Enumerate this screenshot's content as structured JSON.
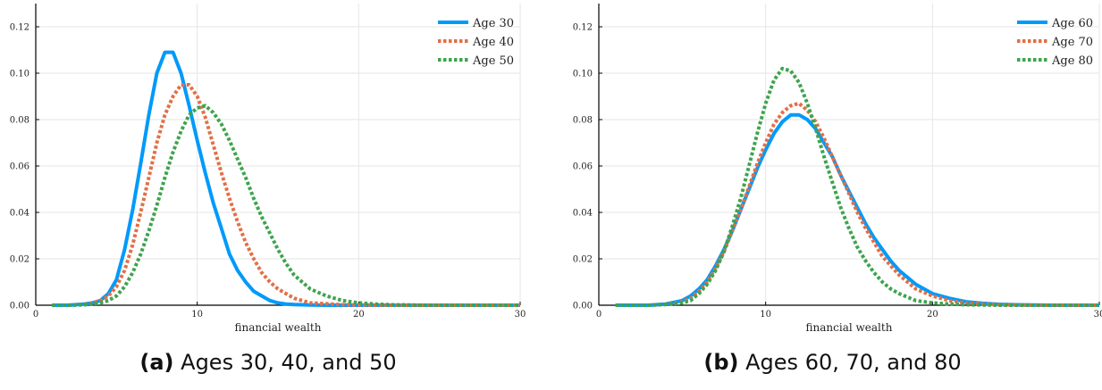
{
  "chart_data": [
    {
      "type": "line",
      "panel_label": "(a)",
      "caption": "Ages 30, 40, and 50",
      "xlabel": "financial wealth",
      "ylabel": "",
      "xlim": [
        0,
        30
      ],
      "ylim": [
        0,
        0.13
      ],
      "xticks": [
        0,
        10,
        20,
        30
      ],
      "yticks": [
        0.0,
        0.02,
        0.04,
        0.06,
        0.08,
        0.1,
        0.12
      ],
      "ytick_labels": [
        "0.00",
        "0.02",
        "0.04",
        "0.06",
        "0.08",
        "0.10",
        "0.12"
      ],
      "grid": true,
      "legend_position": "top-right",
      "x": [
        1,
        2,
        3,
        3.5,
        4,
        4.5,
        5,
        5.5,
        6,
        6.5,
        7,
        7.5,
        8,
        8.5,
        9,
        9.5,
        10,
        10.5,
        11,
        11.5,
        12,
        12.5,
        13,
        13.5,
        14,
        14.5,
        15,
        15.5,
        16,
        17,
        18,
        19,
        20,
        21,
        22,
        23,
        24,
        25,
        26,
        27,
        28,
        29,
        30
      ],
      "series": [
        {
          "name": "Age 30",
          "color": "#009AFA",
          "style": "solid",
          "values": [
            0.0,
            0.0,
            0.0005,
            0.001,
            0.002,
            0.005,
            0.011,
            0.024,
            0.041,
            0.061,
            0.082,
            0.1,
            0.109,
            0.109,
            0.1,
            0.086,
            0.071,
            0.057,
            0.044,
            0.033,
            0.022,
            0.015,
            0.01,
            0.006,
            0.004,
            0.002,
            0.001,
            0.0005,
            0.0003,
            0.0001,
            0.0,
            0.0,
            0.0,
            0.0,
            0.0,
            0.0,
            0.0,
            0.0,
            0.0,
            0.0,
            0.0,
            0.0,
            0.0
          ]
        },
        {
          "name": "Age 40",
          "color": "#E26F46",
          "style": "dotted",
          "values": [
            0.0,
            0.0,
            0.0003,
            0.001,
            0.002,
            0.004,
            0.008,
            0.015,
            0.026,
            0.04,
            0.055,
            0.07,
            0.082,
            0.09,
            0.095,
            0.095,
            0.09,
            0.081,
            0.069,
            0.057,
            0.046,
            0.036,
            0.027,
            0.02,
            0.014,
            0.01,
            0.007,
            0.005,
            0.003,
            0.001,
            0.0006,
            0.0002,
            0.0001,
            0.0,
            0.0,
            0.0,
            0.0,
            0.0,
            0.0,
            0.0,
            0.0,
            0.0,
            0.0
          ]
        },
        {
          "name": "Age 50",
          "color": "#3DA44D",
          "style": "dotted",
          "values": [
            0.0,
            0.0,
            0.0002,
            0.0005,
            0.001,
            0.002,
            0.004,
            0.008,
            0.014,
            0.022,
            0.032,
            0.043,
            0.055,
            0.066,
            0.075,
            0.082,
            0.085,
            0.086,
            0.083,
            0.078,
            0.071,
            0.063,
            0.055,
            0.046,
            0.038,
            0.031,
            0.024,
            0.018,
            0.013,
            0.007,
            0.004,
            0.002,
            0.001,
            0.0005,
            0.0002,
            0.0001,
            0.0,
            0.0,
            0.0,
            0.0,
            0.0,
            0.0,
            0.0
          ]
        }
      ]
    },
    {
      "type": "line",
      "panel_label": "(b)",
      "caption": "Ages 60, 70, and 80",
      "xlabel": "financial wealth",
      "ylabel": "",
      "xlim": [
        0,
        30
      ],
      "ylim": [
        0,
        0.13
      ],
      "xticks": [
        0,
        10,
        20,
        30
      ],
      "yticks": [
        0.0,
        0.02,
        0.04,
        0.06,
        0.08,
        0.1,
        0.12
      ],
      "ytick_labels": [
        "0.00",
        "0.02",
        "0.04",
        "0.06",
        "0.08",
        "0.10",
        "0.12"
      ],
      "grid": true,
      "legend_position": "top-right",
      "x": [
        1,
        2,
        3,
        4,
        5,
        5.5,
        6,
        6.5,
        7,
        7.5,
        8,
        8.5,
        9,
        9.5,
        10,
        10.5,
        11,
        11.5,
        12,
        12.5,
        13,
        13.5,
        14,
        14.5,
        15,
        15.5,
        16,
        16.5,
        17,
        17.5,
        18,
        19,
        20,
        21,
        22,
        23,
        24,
        25,
        26,
        27,
        28,
        29,
        30
      ],
      "series": [
        {
          "name": "Age 60",
          "color": "#009AFA",
          "style": "solid",
          "values": [
            0.0,
            0.0,
            0.0,
            0.0005,
            0.002,
            0.004,
            0.007,
            0.011,
            0.017,
            0.024,
            0.032,
            0.041,
            0.05,
            0.059,
            0.067,
            0.074,
            0.079,
            0.082,
            0.082,
            0.08,
            0.076,
            0.07,
            0.064,
            0.056,
            0.049,
            0.042,
            0.035,
            0.029,
            0.024,
            0.019,
            0.015,
            0.009,
            0.005,
            0.003,
            0.0015,
            0.0008,
            0.0004,
            0.0002,
            0.0001,
            0.0,
            0.0,
            0.0,
            0.0
          ]
        },
        {
          "name": "Age 70",
          "color": "#E26F46",
          "style": "dotted",
          "values": [
            0.0,
            0.0,
            0.0,
            0.0004,
            0.0015,
            0.003,
            0.006,
            0.01,
            0.016,
            0.023,
            0.032,
            0.041,
            0.051,
            0.061,
            0.07,
            0.078,
            0.083,
            0.086,
            0.087,
            0.084,
            0.079,
            0.072,
            0.064,
            0.056,
            0.048,
            0.04,
            0.033,
            0.027,
            0.021,
            0.017,
            0.013,
            0.007,
            0.004,
            0.002,
            0.001,
            0.0005,
            0.0002,
            0.0001,
            0.0,
            0.0,
            0.0,
            0.0,
            0.0
          ]
        },
        {
          "name": "Age 80",
          "color": "#3DA44D",
          "style": "dotted",
          "values": [
            0.0,
            0.0,
            0.0,
            0.0003,
            0.001,
            0.002,
            0.005,
            0.009,
            0.015,
            0.023,
            0.034,
            0.046,
            0.06,
            0.074,
            0.087,
            0.097,
            0.102,
            0.101,
            0.096,
            0.087,
            0.076,
            0.064,
            0.053,
            0.042,
            0.033,
            0.025,
            0.019,
            0.014,
            0.01,
            0.007,
            0.005,
            0.002,
            0.001,
            0.0005,
            0.0002,
            0.0001,
            0.0,
            0.0,
            0.0,
            0.0,
            0.0,
            0.0,
            0.0
          ]
        }
      ]
    }
  ]
}
